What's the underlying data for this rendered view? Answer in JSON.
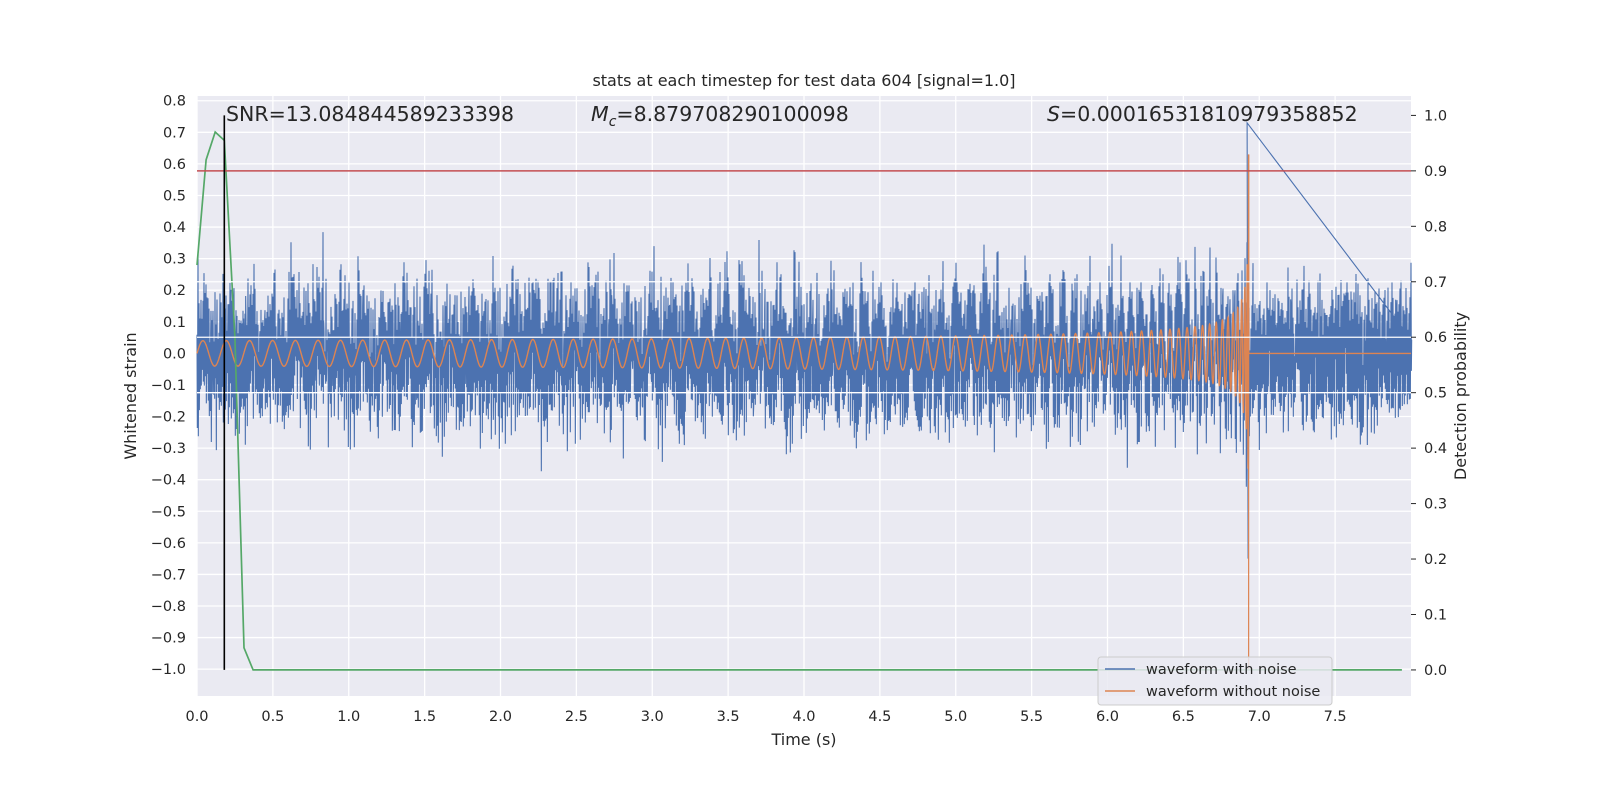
{
  "chart_data": {
    "type": "line",
    "title": "stats at each timestep for test data 604 [signal=1.0]",
    "xlabel": "Time (s)",
    "ylabel": "Whitened strain",
    "y2label": "Detection probability",
    "xlim": [
      0.0,
      8.0
    ],
    "ylim": [
      -1.085,
      0.815
    ],
    "y2lim": [
      -0.047,
      1.035
    ],
    "x_ticks": [
      "0.0",
      "0.5",
      "1.0",
      "1.5",
      "2.0",
      "2.5",
      "3.0",
      "3.5",
      "4.0",
      "4.5",
      "5.0",
      "5.5",
      "6.0",
      "6.5",
      "7.0",
      "7.5"
    ],
    "y_ticks": [
      "0.8",
      "0.7",
      "0.6",
      "0.5",
      "0.4",
      "0.3",
      "0.2",
      "0.1",
      "0.0",
      "−0.1",
      "−0.2",
      "−0.3",
      "−0.4",
      "−0.5",
      "−0.6",
      "−0.7",
      "−0.8",
      "−0.9",
      "−1.0"
    ],
    "y2_ticks": [
      "1.0",
      "0.9",
      "0.8",
      "0.7",
      "0.6",
      "0.5",
      "0.4",
      "0.3",
      "0.2",
      "0.1",
      "0.0"
    ],
    "annotations": {
      "snr": "SNR=13.084844589233398",
      "mc_symbol": "M",
      "mc_sub": "c",
      "mc_value": "=8.879708290100098",
      "s_symbol": "S",
      "s_value": "=0.00016531810979358852"
    },
    "legend": {
      "position": "lower-right",
      "entries": [
        "waveform with noise",
        "waveform without noise"
      ]
    },
    "threshold_probability": 0.9,
    "marker_time": 0.18,
    "merger_time": 6.93,
    "noise_amplitude": 0.25,
    "series": [
      {
        "name": "waveform with noise",
        "axis": "left",
        "description_points": "noisy whitened strain, roughly ±0.25 band, growing near merger to ~0.73",
        "color": "#4c72b0"
      },
      {
        "name": "waveform without noise",
        "axis": "left",
        "chirp_start_amplitude": 0.04,
        "chirp_peak_amplitude": 0.63,
        "color": "#dd8452"
      },
      {
        "axis": "right",
        "color": "#55a868",
        "x": [
          0.0,
          0.06,
          0.12,
          0.18,
          0.25,
          0.31,
          0.37,
          0.5,
          1.0,
          2.0,
          3.0,
          4.0,
          5.0,
          6.0,
          7.0,
          7.94
        ],
        "values": [
          0.73,
          0.92,
          0.97,
          0.955,
          0.6,
          0.04,
          0.0,
          0.0,
          0.0,
          0.0,
          0.0,
          0.0,
          0.0,
          0.0,
          0.0,
          0.0
        ]
      }
    ],
    "colors": {
      "plot_bg": "#eaeaf2",
      "grid": "#ffffff",
      "threshold_line": "#c44e52",
      "marker_line": "#000000"
    }
  }
}
